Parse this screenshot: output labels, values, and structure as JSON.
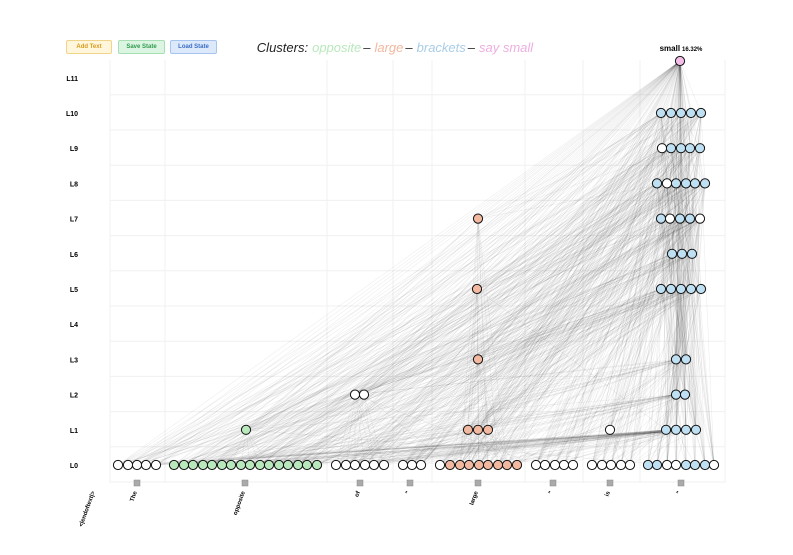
{
  "toolbar": {
    "buttons": [
      "Add Text",
      "Save State",
      "Load State"
    ]
  },
  "header": {
    "prefix": "Clusters:",
    "clusters": [
      {
        "name": "opposite",
        "color": "#b9e8bd"
      },
      {
        "name": "large",
        "color": "#f2b9a0"
      },
      {
        "name": "brackets",
        "color": "#a9cde8"
      },
      {
        "name": "say small",
        "color": "#eeaee0"
      }
    ],
    "separator": "–"
  },
  "output": {
    "token": "small",
    "probability": "16.32%"
  },
  "layers": [
    "L0",
    "L1",
    "L2",
    "L3",
    "L4",
    "L5",
    "L6",
    "L7",
    "L8",
    "L9",
    "L10",
    "L11"
  ],
  "tokens": [
    "<|endoftext|>",
    "The",
    "opposite",
    "of",
    "\"",
    "large",
    "\"",
    "is",
    "\""
  ]
}
